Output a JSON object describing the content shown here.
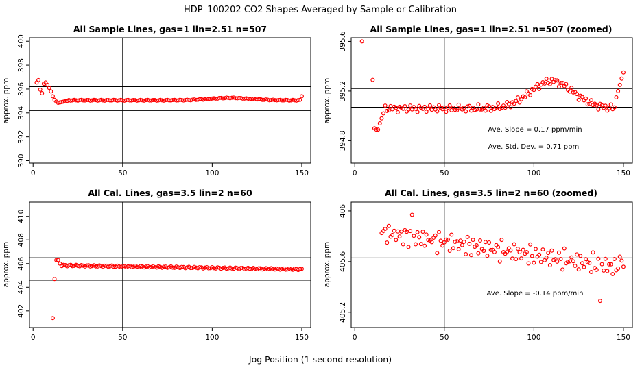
{
  "page": {
    "main_title": "HDP_100202  CO2 Shapes Averaged by Sample or Calibration",
    "xlabel": "Jog Position (1 second resolution)"
  },
  "colors": {
    "points": "#ff0000",
    "axes": "#000000",
    "background": "#ffffff"
  },
  "chart_data": [
    {
      "id": "p1",
      "type": "scatter",
      "title": "All Sample Lines, gas=1 lin=2.51 n=507",
      "xlabel": "",
      "ylabel": "approx. ppm",
      "xlim": [
        -2,
        155
      ],
      "ylim": [
        389.8,
        400.3
      ],
      "xticks": [
        0,
        50,
        100,
        150
      ],
      "yticks": [
        390,
        392,
        394,
        396,
        398,
        400
      ],
      "vline": 50,
      "hlines": [
        394.2,
        396.2
      ],
      "annotations": [],
      "series": [
        {
          "name": "sample",
          "x": [],
          "y": []
        }
      ]
    },
    {
      "id": "p2",
      "type": "scatter",
      "title": "All Sample Lines, gas=1 lin=2.51 n=507 (zoomed)",
      "xlabel": "",
      "ylabel": "approx. ppm",
      "xlim": [
        -2,
        155
      ],
      "ylim": [
        394.62,
        395.63
      ],
      "xticks": [
        0,
        50,
        100,
        150
      ],
      "yticks": [
        394.8,
        395.2,
        395.6
      ],
      "vline": 50,
      "hlines": [
        395.07,
        395.22
      ],
      "annotations": [
        "Ave. Slope =  0.17  ppm/min",
        "Ave. Std. Dev. =  0.71  ppm"
      ],
      "series": [
        {
          "name": "sample-zoom",
          "x": [],
          "y": []
        }
      ]
    },
    {
      "id": "p3",
      "type": "scatter",
      "title": "All Cal. Lines, gas=3.5 lin=2 n=60",
      "xlabel": "",
      "ylabel": "approx. ppm",
      "xlim": [
        -2,
        155
      ],
      "ylim": [
        400.6,
        411.2
      ],
      "xticks": [
        0,
        50,
        100,
        150
      ],
      "yticks": [
        402,
        404,
        406,
        408,
        410
      ],
      "vline": 50,
      "hlines": [
        404.6,
        406.5
      ],
      "annotations": [],
      "series": [
        {
          "name": "cal",
          "x": [],
          "y": []
        }
      ]
    },
    {
      "id": "p4",
      "type": "scatter",
      "title": "All Cal. Lines, gas=3.5 lin=2 n=60 (zoomed)",
      "xlabel": "",
      "ylabel": "approx. ppm",
      "xlim": [
        -2,
        155
      ],
      "ylim": [
        405.08,
        406.07
      ],
      "xticks": [
        0,
        50,
        100,
        150
      ],
      "yticks": [
        405.2,
        405.6,
        406.0
      ],
      "vline": 50,
      "hlines": [
        405.51,
        405.63
      ],
      "annotations": [
        "Ave. Slope =  -0.14  ppm/min"
      ],
      "series": [
        {
          "name": "cal-zoom",
          "x": [],
          "y": []
        }
      ]
    }
  ]
}
